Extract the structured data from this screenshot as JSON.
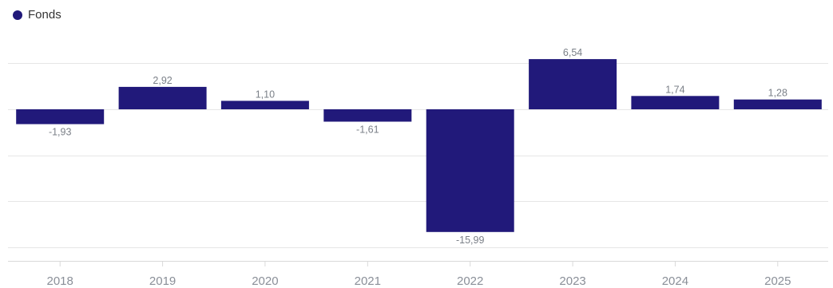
{
  "legend": {
    "label": "Fonds",
    "color": "#21197a"
  },
  "chart_data": {
    "type": "bar",
    "categories": [
      "2018",
      "2019",
      "2020",
      "2021",
      "2022",
      "2023",
      "2024",
      "2025"
    ],
    "series": [
      {
        "name": "Fonds",
        "values": [
          -1.93,
          2.92,
          1.1,
          -1.61,
          -15.99,
          6.54,
          1.74,
          1.28
        ],
        "labels": [
          "-1,93",
          "2,92",
          "1,10",
          "-1,61",
          "-15,99",
          "6,54",
          "1,74",
          "1,28"
        ],
        "color": "#21197a"
      }
    ],
    "ylim": [
      -20,
      6.5
    ],
    "grid": true,
    "legend_position": "top-left",
    "title": "",
    "xlabel": "",
    "ylabel": ""
  }
}
